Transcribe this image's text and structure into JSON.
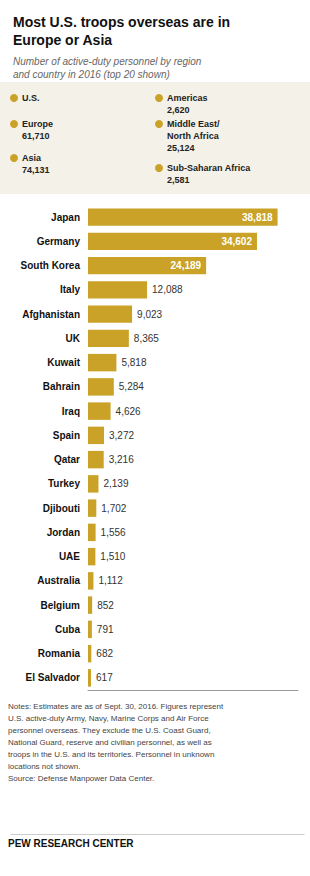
{
  "chart_data": {
    "type": "bar",
    "orientation": "horizontal",
    "title": "Most U.S. troops overseas are in\nEurope or Asia",
    "subtitle": "Number of active-duty personnel by region\nand country in 2016 (top 20 shown)",
    "categories": [
      "Japan",
      "Germany",
      "South Korea",
      "Italy",
      "Afghanistan",
      "UK",
      "Kuwait",
      "Bahrain",
      "Iraq",
      "Spain",
      "Qatar",
      "Turkey",
      "Djibouti",
      "Jordan",
      "UAE",
      "Australia",
      "Belgium",
      "Cuba",
      "Romania",
      "El Salvador"
    ],
    "values": [
      38818,
      34602,
      24189,
      12088,
      9023,
      8365,
      5818,
      5284,
      4626,
      3272,
      3216,
      2139,
      1702,
      1556,
      1510,
      1112,
      852,
      791,
      682,
      617
    ],
    "value_labels": [
      "38,818",
      "34,602",
      "24,189",
      "12,088",
      "9,023",
      "8,365",
      "5,818",
      "5,284",
      "4,626",
      "3,272",
      "3,216",
      "2,139",
      "1,702",
      "1,556",
      "1,510",
      "1,112",
      "852",
      "791",
      "682",
      "617"
    ],
    "color": "#C9A227",
    "xlim": [
      0,
      43000
    ],
    "grid": false,
    "data_labels": true,
    "tick_labels": "y",
    "annotations": [
      "U.S.",
      "Americas\n2,620",
      "Europe\n61,710",
      "Middle East/\nNorth Africa",
      "25,124",
      "Asia\n74,131",
      "Sub-Saharan Africa\n2,581"
    ],
    "notes": "Notes: Estimates are as of Sept. 30, 2016. Figures represent\nU.S. active-duty Army, Navy, Marine Corps and Air Force\npersonnel overseas. They exclude the U.S. Coast Guard,\nNational Guard, reserve and civilian personnel, as well as\ntroops in the U.S. and its territories. Personnel in unknown\nlocations not shown.\nSource: Defense Manpower Data Center.",
    "source": "PEW RESEARCH CENTER"
  }
}
